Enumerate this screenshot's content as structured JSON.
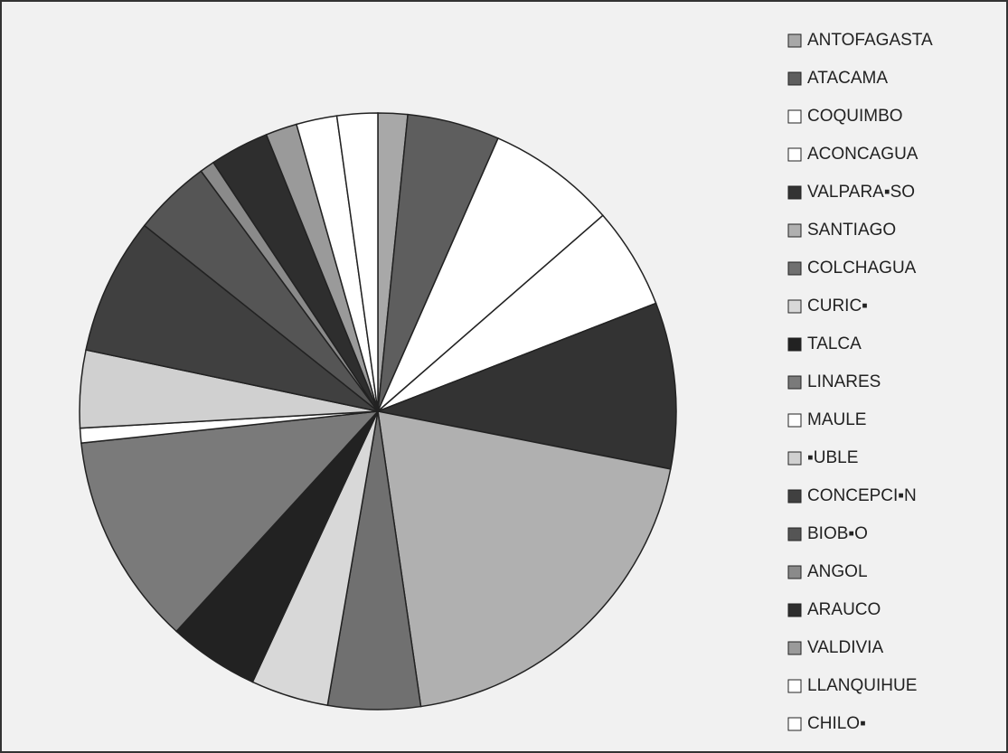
{
  "chart_data": {
    "type": "pie",
    "categories": [
      "ANTOFAGASTA",
      "ATACAMA",
      "COQUIMBO",
      "ACONCAGUA",
      "VALPARA▪SO",
      "SANTIAGO",
      "COLCHAGUA",
      "CURIC▪",
      "TALCA",
      "LINARES",
      "MAULE",
      "▪UBLE",
      "CONCEPCI▪N",
      "BIOB▪O",
      "ANGOL",
      "ARAUCO",
      "VALDIVIA",
      "LLANQUIHUE",
      "CHILO▪"
    ],
    "values": [
      1.6,
      5,
      7,
      5.5,
      9,
      19.6,
      5,
      4.2,
      4.9,
      11.5,
      0.8,
      4.2,
      7.4,
      4.2,
      0.8,
      3.2,
      1.7,
      2.2,
      2.2
    ],
    "colors": [
      "#a8a8a8",
      "#5e5e5e",
      "#ffffff",
      "#ffffff",
      "#333333",
      "#b0b0b0",
      "#707070",
      "#d8d8d8",
      "#222222",
      "#7a7a7a",
      "#ffffff",
      "#d0d0d0",
      "#404040",
      "#555555",
      "#8a8a8a",
      "#2e2e2e",
      "#9a9a9a",
      "#ffffff",
      "#ffffff"
    ]
  }
}
